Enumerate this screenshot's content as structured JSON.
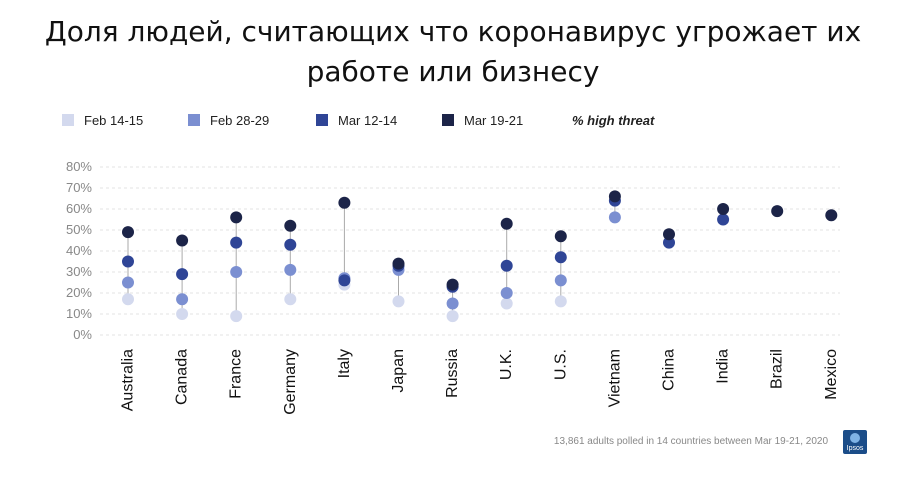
{
  "title": {
    "line1": "Доля людей, считающих что коронавирус угрожает их",
    "line2": "работе или бизнесу"
  },
  "legend": {
    "items": [
      {
        "label": "Feb 14-15",
        "color": "#d3d9ee"
      },
      {
        "label": "Feb 28-29",
        "color": "#7b8fd1"
      },
      {
        "label": "Mar 12-14",
        "color": "#2f4596"
      },
      {
        "label": "Mar 19-21",
        "color": "#1c2448"
      }
    ],
    "note": "% high threat"
  },
  "footnote": "13,861 adults polled in 14 countries between Mar 19-21, 2020",
  "logo": {
    "text": "Ipsos"
  },
  "chart_data": {
    "type": "scatter",
    "title": "Доля людей, считающих что коронавирус угрожает их работе или бизнесу",
    "xlabel": "",
    "ylabel": "",
    "categories": [
      "Australia",
      "Canada",
      "France",
      "Germany",
      "Italy",
      "Japan",
      "Russia",
      "U.K.",
      "U.S.",
      "Vietnam",
      "China",
      "India",
      "Brazil",
      "Mexico"
    ],
    "ylim": [
      0,
      80
    ],
    "yticks": [
      0,
      10,
      20,
      30,
      40,
      50,
      60,
      70,
      80
    ],
    "ytick_labels": [
      "0%",
      "10%",
      "20%",
      "30%",
      "40%",
      "50%",
      "60%",
      "70%",
      "80%"
    ],
    "grid": true,
    "legend_position": "top-left",
    "series": [
      {
        "name": "Feb 14-15",
        "color": "#d3d9ee",
        "values": [
          17,
          10,
          9,
          17,
          24,
          16,
          9,
          15,
          16,
          null,
          null,
          null,
          null,
          null
        ]
      },
      {
        "name": "Feb 28-29",
        "color": "#7b8fd1",
        "values": [
          25,
          17,
          30,
          31,
          27,
          31,
          15,
          20,
          26,
          56,
          null,
          null,
          null,
          null
        ]
      },
      {
        "name": "Mar 12-14",
        "color": "#2f4596",
        "values": [
          35,
          29,
          44,
          43,
          26,
          33,
          23,
          33,
          37,
          64,
          44,
          55,
          null,
          null
        ]
      },
      {
        "name": "Mar 19-21",
        "color": "#1c2448",
        "values": [
          49,
          45,
          56,
          52,
          63,
          34,
          24,
          53,
          47,
          66,
          48,
          60,
          59,
          57
        ]
      }
    ]
  }
}
